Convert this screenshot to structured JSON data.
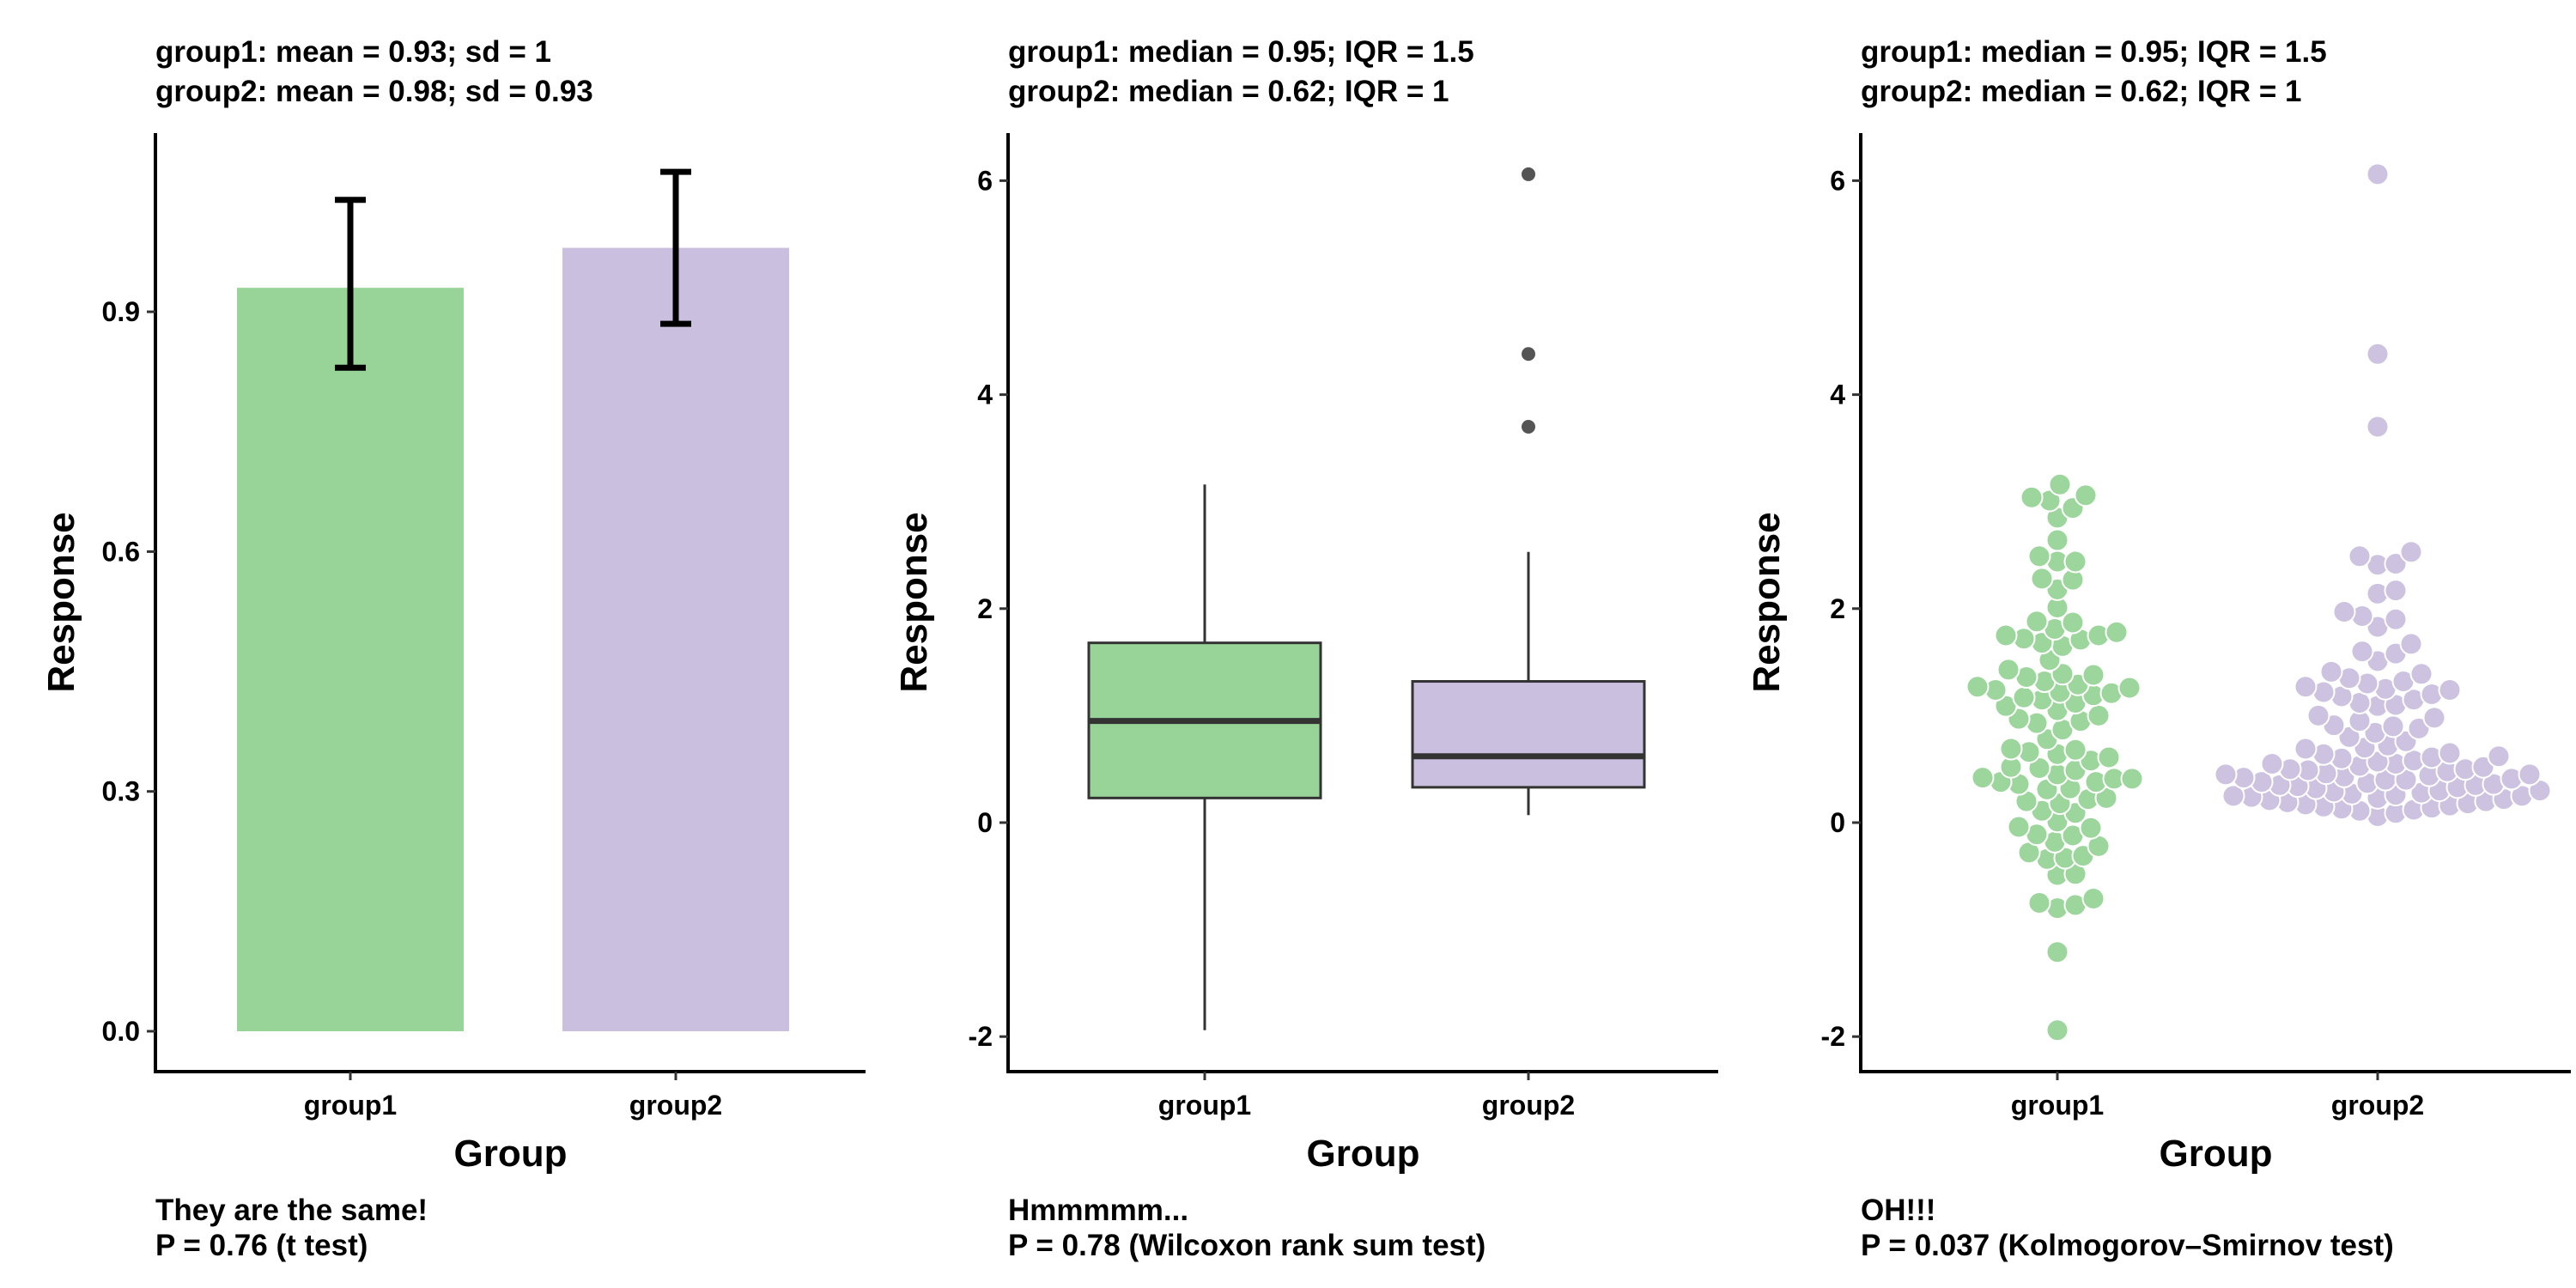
{
  "colors": {
    "group1": "#98d497",
    "group2": "#cbbfdf",
    "box_line": "#333333",
    "outlier": "#555555"
  },
  "chart_data": [
    {
      "type": "bar",
      "title": [
        "group1: mean = 0.93; sd = 1",
        "group2: mean = 0.98; sd = 0.93"
      ],
      "categories": [
        "group1",
        "group2"
      ],
      "values": [
        0.93,
        0.98
      ],
      "error_low": [
        0.83,
        0.885
      ],
      "error_high": [
        1.04,
        1.075
      ],
      "xlabel": "Group",
      "ylabel": "Response",
      "ylim": [
        -0.055,
        1.12
      ],
      "yticks": [
        0.0,
        0.3,
        0.6,
        0.9
      ],
      "ytick_labels": [
        "0.0",
        "0.3",
        "0.6",
        "0.9"
      ],
      "caption": [
        "They are the same!",
        "P = 0.76 (t test)"
      ]
    },
    {
      "type": "box",
      "title": [
        "group1: median = 0.95; IQR = 1.5",
        "group2: median = 0.62; IQR = 1"
      ],
      "categories": [
        "group1",
        "group2"
      ],
      "boxes": [
        {
          "whisker_low": -1.94,
          "q1": 0.23,
          "median": 0.95,
          "q3": 1.68,
          "whisker_high": 3.16,
          "outliers": []
        },
        {
          "whisker_low": 0.07,
          "q1": 0.33,
          "median": 0.62,
          "q3": 1.32,
          "whisker_high": 2.53,
          "outliers": [
            3.7,
            4.38,
            6.06
          ]
        }
      ],
      "xlabel": "Group",
      "ylabel": "Response",
      "ylim": [
        -2.35,
        6.6
      ],
      "yticks": [
        -2,
        0,
        2,
        4,
        6
      ],
      "ytick_labels": [
        "-2",
        "0",
        "2",
        "4",
        "6"
      ],
      "caption": [
        "Hmmmmm...",
        "P = 0.78 (Wilcoxon rank sum test)"
      ]
    },
    {
      "type": "scatter",
      "subtype": "beeswarm",
      "title": [
        "group1: median = 0.95; IQR = 1.5",
        "group2: median = 0.62; IQR = 1"
      ],
      "categories": [
        "group1",
        "group2"
      ],
      "points": [
        [
          3.16,
          3.04,
          3.01,
          3.06,
          2.94,
          2.85,
          2.64,
          2.49,
          2.44,
          2.44,
          2.28,
          2.27,
          2.18,
          2.01,
          1.88,
          1.87,
          1.81,
          1.78,
          1.75,
          1.75,
          1.72,
          1.71,
          1.65,
          1.68,
          1.52,
          1.43,
          1.39,
          1.38,
          1.36,
          1.32,
          1.29,
          1.27,
          1.24,
          1.21,
          1.19,
          1.17,
          1.15,
          1.12,
          1.09,
          1.05,
          1.0,
          0.97,
          0.95,
          0.93,
          0.87,
          0.78,
          0.69,
          0.68,
          0.66,
          0.64,
          0.61,
          0.58,
          0.52,
          0.51,
          0.49,
          0.45,
          0.42,
          0.41,
          0.38,
          0.36,
          0.32,
          0.31,
          0.23,
          0.22,
          0.2,
          0.18,
          0.11,
          0.09,
          0.01,
          -0.04,
          -0.05,
          -0.11,
          -0.12,
          -0.18,
          -0.22,
          -0.28,
          -0.31,
          -0.33,
          -0.34,
          -0.48,
          -0.49,
          -0.71,
          -0.75,
          -0.77,
          -0.8,
          -1.21,
          -1.94,
          1.26,
          1.22,
          0.41,
          0.38
        ],
        [
          6.06,
          4.38,
          3.7,
          2.53,
          2.49,
          2.42,
          2.41,
          2.17,
          2.14,
          1.97,
          1.93,
          1.9,
          1.83,
          1.67,
          1.6,
          1.58,
          1.51,
          1.41,
          1.39,
          1.35,
          1.32,
          1.3,
          1.27,
          1.24,
          1.22,
          1.18,
          1.15,
          1.12,
          1.09,
          0.98,
          0.95,
          0.91,
          0.88,
          0.84,
          0.8,
          0.76,
          0.72,
          0.69,
          0.65,
          0.64,
          0.62,
          0.61,
          0.58,
          0.55,
          0.53,
          0.52,
          0.49,
          0.48,
          0.46,
          0.45,
          0.44,
          0.42,
          0.41,
          0.4,
          0.38,
          0.36,
          0.35,
          0.34,
          0.32,
          0.3,
          0.29,
          0.28,
          0.26,
          0.25,
          0.23,
          0.22,
          0.21,
          0.19,
          0.18,
          0.16,
          0.15,
          0.13,
          0.12,
          0.09,
          0.06,
          0.6,
          0.57,
          0.5,
          0.43,
          0.4,
          0.37,
          0.33,
          0.27,
          0.24,
          0.2,
          0.17,
          0.14,
          0.11,
          0.45,
          0.5,
          0.55,
          0.35,
          0.3,
          0.25,
          1.2,
          1.25,
          1.1,
          0.9,
          1.0,
          0.7
        ]
      ],
      "xlabel": "Group",
      "ylabel": "Response",
      "ylim": [
        -2.35,
        6.6
      ],
      "yticks": [
        -2,
        0,
        2,
        4,
        6
      ],
      "ytick_labels": [
        "-2",
        "0",
        "2",
        "4",
        "6"
      ],
      "caption": [
        "OH!!!",
        "P = 0.037 (Kolmogorov–Smirnov test)"
      ]
    }
  ]
}
